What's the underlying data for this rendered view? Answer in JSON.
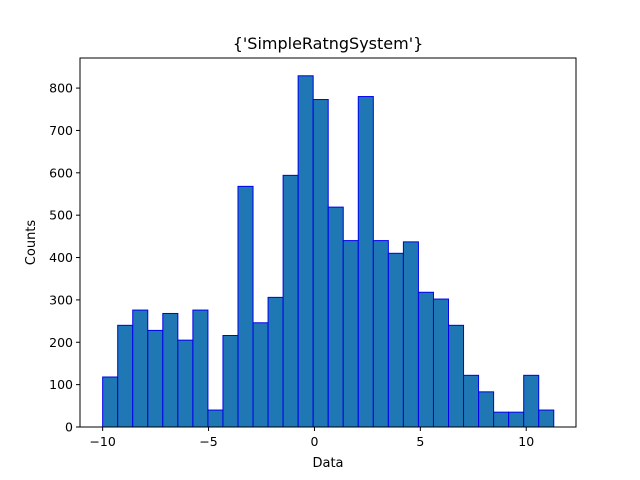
{
  "chart_data": {
    "type": "bar",
    "title": "{'SimpleRatngSystem'}",
    "xlabel": "Data",
    "ylabel": "Counts",
    "xlim": [
      -11.07,
      12.35
    ],
    "ylim": [
      0,
      871
    ],
    "x_ticks": [
      -10,
      -5,
      0,
      5,
      10
    ],
    "x_tick_labels": [
      "−10",
      "−5",
      "0",
      "5",
      "10"
    ],
    "y_ticks": [
      0,
      100,
      200,
      300,
      400,
      500,
      600,
      700,
      800
    ],
    "y_tick_labels": [
      "0",
      "100",
      "200",
      "300",
      "400",
      "500",
      "600",
      "700",
      "800"
    ],
    "bin_start": -10.0,
    "bin_width": 0.71,
    "values": [
      118,
      240,
      276,
      228,
      268,
      205,
      276,
      40,
      216,
      568,
      246,
      306,
      594,
      829,
      773,
      519,
      440,
      780,
      440,
      410,
      437,
      318,
      302,
      240,
      122,
      83,
      35,
      35,
      122,
      40
    ],
    "fill_color": "#1f77b4",
    "edge_color": "#0000ee",
    "grid": false
  }
}
